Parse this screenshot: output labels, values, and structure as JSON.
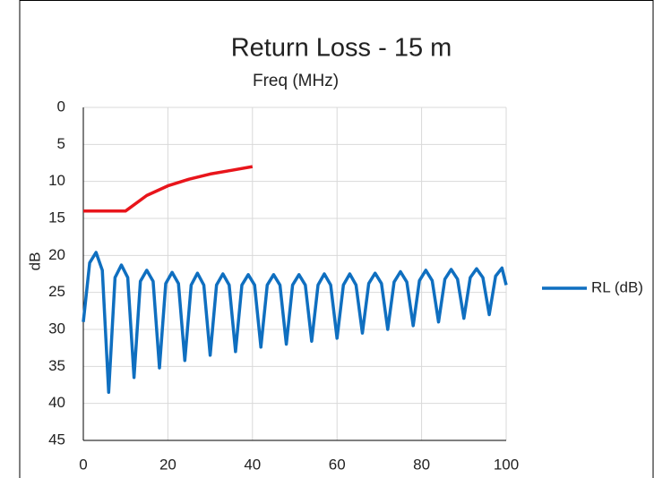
{
  "chart_data": {
    "type": "line",
    "title": "Return Loss - 15 m",
    "x_label": "Freq (MHz)",
    "y_label": "dB",
    "xlim": [
      0,
      100
    ],
    "xticks": [
      0,
      20,
      40,
      60,
      80,
      100
    ],
    "ylim": [
      0,
      45
    ],
    "yticks": [
      0,
      5,
      10,
      15,
      20,
      25,
      30,
      35,
      40,
      45
    ],
    "y_inverted": true,
    "grid": true,
    "series": [
      {
        "name": "RL (dB)",
        "color": "#0f6fc0",
        "legend": true,
        "x": [
          0,
          1.5,
          3,
          4.5,
          6,
          7.5,
          9,
          10.5,
          12,
          13.5,
          15,
          16.5,
          18,
          19.5,
          21,
          22.5,
          24,
          25.5,
          27,
          28.5,
          30,
          31.5,
          33,
          34.5,
          36,
          37.5,
          39,
          40.5,
          42,
          43.5,
          45,
          46.5,
          48,
          49.5,
          51,
          52.5,
          54,
          55.5,
          57,
          58.5,
          60,
          61.5,
          63,
          64.5,
          66,
          67.5,
          69,
          70.5,
          72,
          73.5,
          75,
          76.5,
          78,
          79.5,
          81,
          82.5,
          84,
          85.5,
          87,
          88.5,
          90,
          91.5,
          93,
          94.5,
          96,
          97.5,
          99,
          100
        ],
        "values": [
          29,
          21,
          19.6,
          22,
          38.5,
          23,
          21.3,
          23,
          36.5,
          23.5,
          22,
          23.5,
          35.2,
          23.8,
          22.3,
          23.8,
          34.2,
          24,
          22.4,
          24,
          33.5,
          24,
          22.5,
          24,
          33,
          24,
          22.6,
          24,
          32.4,
          24,
          22.6,
          24,
          32,
          24,
          22.6,
          24,
          31.6,
          24,
          22.5,
          24,
          31.2,
          24,
          22.5,
          24,
          30.5,
          23.8,
          22.4,
          23.8,
          30,
          23.6,
          22.2,
          23.6,
          29.5,
          23.4,
          22,
          23.4,
          29,
          23.2,
          21.9,
          23.2,
          28.5,
          23,
          21.8,
          23,
          28,
          22.8,
          21.7,
          24
        ]
      },
      {
        "color": "#e8151b",
        "legend": false,
        "x": [
          0,
          10,
          15,
          20,
          25,
          30,
          35,
          40
        ],
        "values": [
          14,
          14,
          11.9,
          10.6,
          9.7,
          9.0,
          8.5,
          8.0
        ]
      }
    ]
  }
}
